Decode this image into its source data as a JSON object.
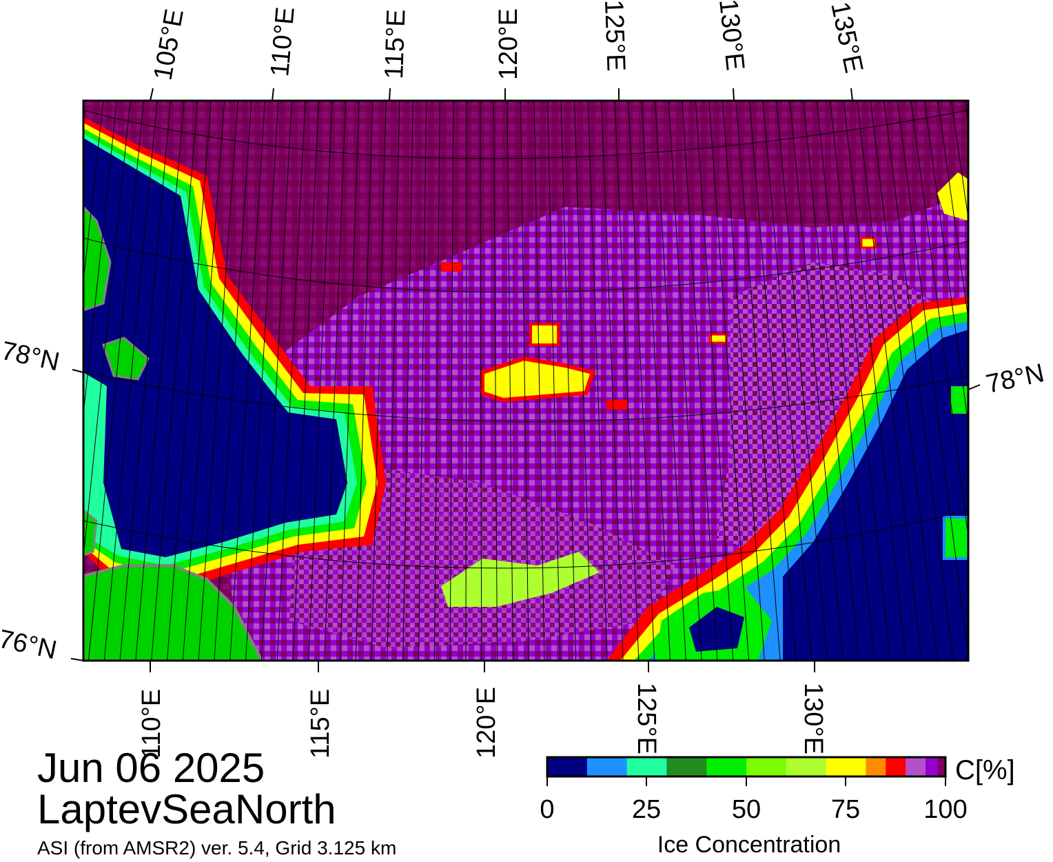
{
  "map": {
    "date": "Jun 06 2025",
    "region": "LaptevSeaNorth",
    "product": "ASI (from AMSR2) ver. 5.4,  Grid 3.125 km",
    "top_longitude_labels": [
      "105°E",
      "110°E",
      "115°E",
      "120°E",
      "125°E",
      "130°E",
      "135°E"
    ],
    "bottom_longitude_labels": [
      "110°E",
      "115°E",
      "120°E",
      "125°E",
      "130°E"
    ],
    "latitude_labels": [
      "78°N",
      "78°N",
      "76°N"
    ],
    "colors": {
      "open_water": "#000080",
      "land": "#00d200",
      "coast_gray": "#828282",
      "thick_ice": "#7d005f",
      "dense_ice": "#9400d3",
      "mid_ice": "#b450c8",
      "ice_edge_red": "#ff0000",
      "ice_edge_yellow": "#ffff00",
      "ice_edge_green": "#00ff00",
      "ice_edge_cyan": "#20ffa0",
      "ice_edge_blue": "#1e90ff"
    }
  },
  "colorbar": {
    "title": "Ice Concentration",
    "unit": "C[%]",
    "tick_labels": [
      "0",
      "25",
      "50",
      "75",
      "100"
    ],
    "colors": [
      "#000080",
      "#1e90ff",
      "#20ffa0",
      "#228b22",
      "#00ee00",
      "#7cfc00",
      "#adff2f",
      "#ffff00",
      "#ff8c00",
      "#ff0000",
      "#b450c8",
      "#9400d3",
      "#7d005f"
    ]
  }
}
